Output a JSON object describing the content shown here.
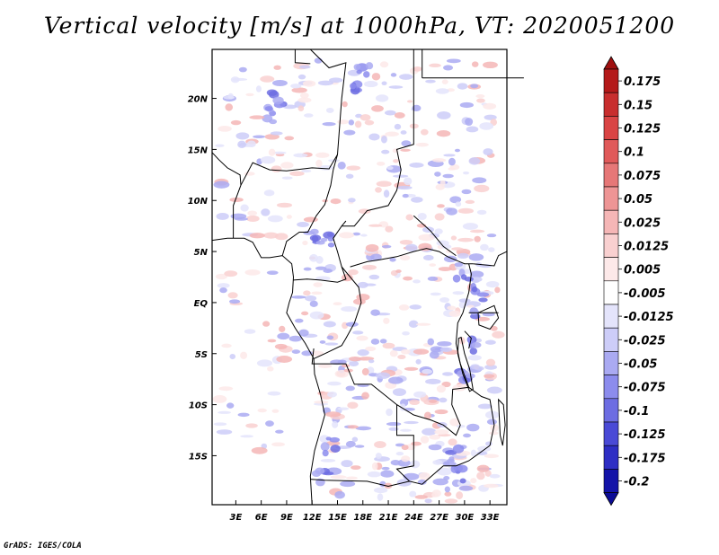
{
  "chart_data": {
    "type": "heatmap",
    "title": "Vertical velocity [m/s] at 1000hPa, VT: 2020051200",
    "xlabel": "",
    "ylabel": "",
    "x_ticks": [
      "3E",
      "6E",
      "9E",
      "12E",
      "15E",
      "18E",
      "21E",
      "24E",
      "27E",
      "30E",
      "33E"
    ],
    "x_tick_values": [
      3,
      6,
      9,
      12,
      15,
      18,
      21,
      24,
      27,
      30,
      33
    ],
    "y_ticks": [
      "20N",
      "15N",
      "10N",
      "5N",
      "EQ",
      "5S",
      "10S",
      "15S"
    ],
    "y_tick_values": [
      20,
      15,
      10,
      5,
      0,
      -5,
      -10,
      -15
    ],
    "xlim": [
      0.2,
      35.0
    ],
    "ylim": [
      -19.8,
      24.8
    ],
    "colorbar": {
      "levels": [
        "0.175",
        "0.15",
        "0.125",
        "0.1",
        "0.075",
        "0.05",
        "0.025",
        "0.0125",
        "0.005",
        "-0.005",
        "-0.0125",
        "-0.025",
        "-0.05",
        "-0.075",
        "-0.1",
        "-0.125",
        "-0.175",
        "-0.2"
      ],
      "colors": [
        "#b41a1a",
        "#c82e2e",
        "#d94444",
        "#e05a5a",
        "#e67777",
        "#ee9595",
        "#f5b6b6",
        "#f9d0d0",
        "#fde9e9",
        "#ffffff",
        "#e4e4fb",
        "#cdcdf8",
        "#aaaaf2",
        "#8c8ced",
        "#6d6de2",
        "#4a4ad6",
        "#2e2ec4",
        "#1414a8"
      ],
      "top_color": "#a01010",
      "bottom_color": "#0c0c96"
    }
  },
  "footer": {
    "credit": "GrADS: IGES/COLA"
  }
}
